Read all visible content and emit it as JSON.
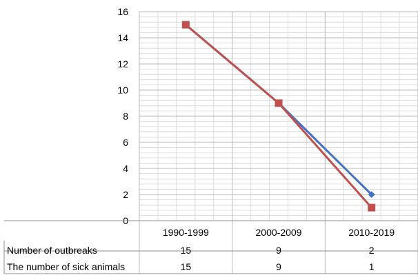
{
  "chart_data": {
    "type": "line",
    "title": "",
    "xlabel": "",
    "ylabel": "",
    "categories": [
      "1990-1999",
      "2000-2009",
      "2010-2019"
    ],
    "ylim": [
      0,
      16
    ],
    "y_ticks": [
      "0",
      "2",
      "4",
      "6",
      "8",
      "10",
      "12",
      "14",
      "16"
    ],
    "grid": true,
    "legend": "data-table-below",
    "series": [
      {
        "name": "Number of outbreaks",
        "values": [
          15,
          9,
          2
        ],
        "color": "#4472c4",
        "marker": "diamond",
        "value_labels": [
          "15",
          "9",
          "2"
        ]
      },
      {
        "name": "The number of sick animals",
        "values": [
          15,
          9,
          1
        ],
        "color": "#c0504d",
        "marker": "square",
        "value_labels": [
          "15",
          "9",
          "1"
        ]
      }
    ],
    "colors": {
      "major_grid": "#b8b8b8",
      "minor_grid": "#dcdcdc",
      "axis": "#8c8c8c"
    }
  }
}
